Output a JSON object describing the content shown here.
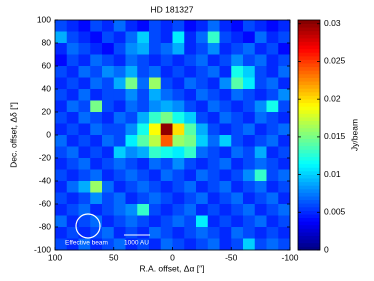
{
  "chart_data": {
    "type": "heatmap",
    "title": "HD 181327",
    "xlabel": "R.A. offset, Δα [″]",
    "ylabel": "Dec. offset, Δδ [″]",
    "colorbar_label": "Jy/beam",
    "annotations": [
      "Effective beam",
      "1000 AU"
    ],
    "xlim": [
      100,
      -100
    ],
    "ylim": [
      -100,
      100
    ],
    "clim": [
      0,
      0.0305
    ],
    "xticks": [
      100,
      50,
      0,
      -50,
      -100
    ],
    "yticks": [
      -100,
      -80,
      -60,
      -40,
      -20,
      0,
      20,
      40,
      60,
      80,
      100
    ],
    "cticks": [
      0,
      0.005,
      0.01,
      0.015,
      0.02,
      0.025,
      0.03
    ],
    "colormap": "jet",
    "x": [
      95,
      85,
      75,
      65,
      55,
      45,
      35,
      25,
      15,
      5,
      -5,
      -15,
      -25,
      -35,
      -45,
      -55,
      -65,
      -75,
      -85,
      -95
    ],
    "y": [
      95,
      85,
      75,
      65,
      55,
      45,
      35,
      25,
      15,
      5,
      -5,
      -15,
      -25,
      -35,
      -45,
      -55,
      -65,
      -75,
      -85,
      -95
    ],
    "z": [
      [
        0.006,
        0.005,
        0.004,
        0.006,
        0.005,
        0.007,
        0.005,
        0.004,
        0.006,
        0.005,
        0.006,
        0.004,
        0.005,
        0.007,
        0.005,
        0.004,
        0.006,
        0.005,
        0.004,
        0.005
      ],
      [
        0.009,
        0.006,
        0.005,
        0.004,
        0.006,
        0.005,
        0.007,
        0.01,
        0.006,
        0.005,
        0.011,
        0.005,
        0.007,
        0.013,
        0.006,
        0.005,
        0.004,
        0.007,
        0.005,
        0.006
      ],
      [
        0.005,
        0.007,
        0.006,
        0.005,
        0.004,
        0.006,
        0.008,
        0.009,
        0.006,
        0.007,
        0.009,
        0.005,
        0.006,
        0.008,
        0.005,
        0.006,
        0.007,
        0.005,
        0.006,
        0.004
      ],
      [
        0.004,
        0.006,
        0.005,
        0.007,
        0.006,
        0.005,
        0.007,
        0.006,
        0.005,
        0.006,
        0.005,
        0.006,
        0.007,
        0.005,
        0.006,
        0.008,
        0.006,
        0.007,
        0.005,
        0.006
      ],
      [
        0.006,
        0.005,
        0.007,
        0.006,
        0.008,
        0.007,
        0.009,
        0.006,
        0.007,
        0.005,
        0.006,
        0.005,
        0.006,
        0.007,
        0.005,
        0.012,
        0.01,
        0.006,
        0.005,
        0.007
      ],
      [
        0.005,
        0.006,
        0.005,
        0.007,
        0.006,
        0.009,
        0.015,
        0.007,
        0.016,
        0.006,
        0.005,
        0.007,
        0.006,
        0.005,
        0.008,
        0.014,
        0.011,
        0.006,
        0.007,
        0.005
      ],
      [
        0.006,
        0.005,
        0.007,
        0.005,
        0.006,
        0.006,
        0.008,
        0.006,
        0.009,
        0.007,
        0.006,
        0.005,
        0.007,
        0.006,
        0.005,
        0.007,
        0.006,
        0.005,
        0.006,
        0.008
      ],
      [
        0.005,
        0.007,
        0.006,
        0.015,
        0.006,
        0.005,
        0.007,
        0.006,
        0.008,
        0.009,
        0.008,
        0.006,
        0.005,
        0.007,
        0.006,
        0.005,
        0.006,
        0.008,
        0.012,
        0.006
      ],
      [
        0.006,
        0.005,
        0.007,
        0.006,
        0.005,
        0.007,
        0.006,
        0.009,
        0.013,
        0.015,
        0.012,
        0.01,
        0.006,
        0.005,
        0.007,
        0.006,
        0.005,
        0.007,
        0.006,
        0.005
      ],
      [
        0.005,
        0.006,
        0.005,
        0.007,
        0.006,
        0.006,
        0.008,
        0.012,
        0.019,
        0.03,
        0.02,
        0.014,
        0.009,
        0.006,
        0.005,
        0.006,
        0.007,
        0.005,
        0.006,
        0.007
      ],
      [
        0.007,
        0.005,
        0.006,
        0.005,
        0.007,
        0.006,
        0.011,
        0.014,
        0.017,
        0.024,
        0.016,
        0.015,
        0.01,
        0.007,
        0.01,
        0.006,
        0.005,
        0.006,
        0.007,
        0.005
      ],
      [
        0.006,
        0.007,
        0.005,
        0.006,
        0.005,
        0.01,
        0.008,
        0.009,
        0.013,
        0.012,
        0.011,
        0.013,
        0.007,
        0.006,
        0.005,
        0.007,
        0.006,
        0.009,
        0.005,
        0.006
      ],
      [
        0.005,
        0.006,
        0.007,
        0.005,
        0.006,
        0.007,
        0.006,
        0.005,
        0.007,
        0.006,
        0.008,
        0.006,
        0.005,
        0.006,
        0.007,
        0.005,
        0.006,
        0.007,
        0.006,
        0.005
      ],
      [
        0.006,
        0.005,
        0.006,
        0.007,
        0.005,
        0.006,
        0.007,
        0.006,
        0.005,
        0.007,
        0.006,
        0.005,
        0.007,
        0.006,
        0.005,
        0.006,
        0.008,
        0.013,
        0.006,
        0.007
      ],
      [
        0.005,
        0.007,
        0.009,
        0.016,
        0.007,
        0.005,
        0.006,
        0.007,
        0.006,
        0.005,
        0.006,
        0.007,
        0.005,
        0.006,
        0.007,
        0.005,
        0.006,
        0.007,
        0.005,
        0.006
      ],
      [
        0.006,
        0.005,
        0.006,
        0.008,
        0.006,
        0.007,
        0.005,
        0.006,
        0.007,
        0.006,
        0.005,
        0.006,
        0.007,
        0.005,
        0.006,
        0.007,
        0.005,
        0.006,
        0.007,
        0.005
      ],
      [
        0.005,
        0.006,
        0.007,
        0.005,
        0.006,
        0.007,
        0.008,
        0.013,
        0.006,
        0.005,
        0.006,
        0.007,
        0.005,
        0.006,
        0.005,
        0.006,
        0.007,
        0.005,
        0.006,
        0.007
      ],
      [
        0.007,
        0.005,
        0.006,
        0.007,
        0.005,
        0.006,
        0.007,
        0.006,
        0.005,
        0.006,
        0.007,
        0.006,
        0.011,
        0.005,
        0.006,
        0.005,
        0.006,
        0.007,
        0.005,
        0.006
      ],
      [
        0.005,
        0.006,
        0.005,
        0.006,
        0.007,
        0.005,
        0.006,
        0.005,
        0.007,
        0.006,
        0.005,
        0.006,
        0.007,
        0.006,
        0.005,
        0.007,
        0.006,
        0.005,
        0.006,
        0.005
      ],
      [
        0.006,
        0.005,
        0.007,
        0.005,
        0.006,
        0.007,
        0.005,
        0.006,
        0.005,
        0.007,
        0.006,
        0.005,
        0.006,
        0.007,
        0.005,
        0.006,
        0.01,
        0.006,
        0.007,
        0.006
      ]
    ]
  }
}
